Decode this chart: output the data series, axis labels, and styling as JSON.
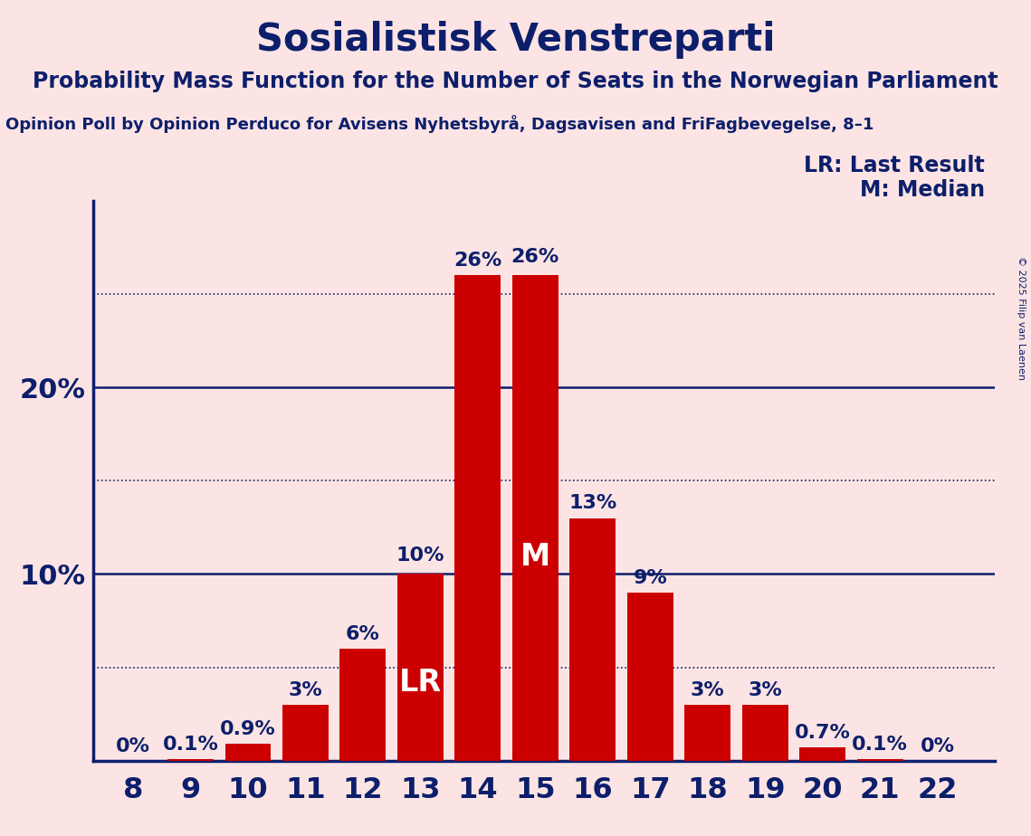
{
  "title": "Sosialistisk Venstreparti",
  "subtitle": "Probability Mass Function for the Number of Seats in the Norwegian Parliament",
  "source_line": "Opinion Poll by Opinion Perduco for Avisens Nyhetsbyrå, Dagsavisen and FriFagbevegelse, 8–1",
  "copyright": "© 2025 Filip van Laenen",
  "seats": [
    8,
    9,
    10,
    11,
    12,
    13,
    14,
    15,
    16,
    17,
    18,
    19,
    20,
    21,
    22
  ],
  "probabilities": [
    0.0,
    0.1,
    0.9,
    3.0,
    6.0,
    10.0,
    26.0,
    26.0,
    13.0,
    9.0,
    3.0,
    3.0,
    0.7,
    0.1,
    0.0
  ],
  "bar_color": "#cc0000",
  "background_color": "#fce4e4",
  "text_color_dark": "#0d1f6b",
  "label_inside_bar_color": "#ffffff",
  "lr_seat": 13,
  "median_seat": 15,
  "dotted_line_values": [
    5,
    15,
    25
  ],
  "solid_line_values": [
    10,
    20
  ],
  "title_fontsize": 30,
  "subtitle_fontsize": 17,
  "source_fontsize": 13,
  "bar_label_fontsize": 16,
  "axis_label_fontsize": 22,
  "tick_label_fontsize": 23,
  "legend_fontsize": 17,
  "copyright_fontsize": 8
}
